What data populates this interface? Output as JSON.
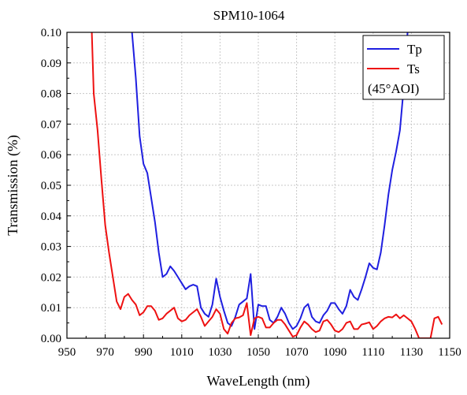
{
  "chart_data": {
    "type": "line",
    "title": "SPM10-1064",
    "xlabel": "WaveLength (nm)",
    "ylabel": "Transmission (%)",
    "xlim": [
      950,
      1150
    ],
    "ylim": [
      0,
      0.1
    ],
    "x_ticks": [
      950,
      970,
      990,
      1010,
      1030,
      1050,
      1070,
      1090,
      1110,
      1130,
      1150
    ],
    "y_ticks": [
      0.0,
      0.01,
      0.02,
      0.03,
      0.04,
      0.05,
      0.06,
      0.07,
      0.08,
      0.09,
      0.1
    ],
    "x_tick_labels": [
      "950",
      "970",
      "990",
      "1010",
      "1030",
      "1050",
      "1070",
      "1090",
      "1110",
      "1130",
      "1150"
    ],
    "y_tick_labels": [
      "0.00",
      "0.01",
      "0.02",
      "0.03",
      "0.04",
      "0.05",
      "0.06",
      "0.07",
      "0.08",
      "0.09",
      "0.10"
    ],
    "grid": true,
    "legend_position": "top-right",
    "legend_note": "(45°AOI)",
    "series": [
      {
        "name": "Tp",
        "color": "#1f1fe0",
        "points": [
          [
            984,
            0.1
          ],
          [
            986,
            0.085
          ],
          [
            988,
            0.066
          ],
          [
            990,
            0.057
          ],
          [
            992,
            0.054
          ],
          [
            994,
            0.046
          ],
          [
            996,
            0.038
          ],
          [
            998,
            0.028
          ],
          [
            1000,
            0.02
          ],
          [
            1002,
            0.021
          ],
          [
            1004,
            0.0235
          ],
          [
            1006,
            0.022
          ],
          [
            1008,
            0.02
          ],
          [
            1010,
            0.018
          ],
          [
            1012,
            0.016
          ],
          [
            1014,
            0.017
          ],
          [
            1016,
            0.0175
          ],
          [
            1018,
            0.017
          ],
          [
            1020,
            0.01
          ],
          [
            1022,
            0.008
          ],
          [
            1024,
            0.007
          ],
          [
            1026,
            0.011
          ],
          [
            1028,
            0.0195
          ],
          [
            1030,
            0.0135
          ],
          [
            1032,
            0.009
          ],
          [
            1034,
            0.005
          ],
          [
            1036,
            0.004
          ],
          [
            1038,
            0.007
          ],
          [
            1040,
            0.011
          ],
          [
            1042,
            0.012
          ],
          [
            1044,
            0.013
          ],
          [
            1046,
            0.021
          ],
          [
            1048,
            0.003
          ],
          [
            1050,
            0.011
          ],
          [
            1052,
            0.0105
          ],
          [
            1054,
            0.0105
          ],
          [
            1056,
            0.006
          ],
          [
            1058,
            0.005
          ],
          [
            1060,
            0.007
          ],
          [
            1062,
            0.01
          ],
          [
            1064,
            0.008
          ],
          [
            1066,
            0.005
          ],
          [
            1068,
            0.003
          ],
          [
            1070,
            0.004
          ],
          [
            1072,
            0.0065
          ],
          [
            1074,
            0.01
          ],
          [
            1076,
            0.0112
          ],
          [
            1078,
            0.007
          ],
          [
            1080,
            0.0055
          ],
          [
            1082,
            0.005
          ],
          [
            1084,
            0.0075
          ],
          [
            1086,
            0.009
          ],
          [
            1088,
            0.0115
          ],
          [
            1090,
            0.0115
          ],
          [
            1092,
            0.0095
          ],
          [
            1094,
            0.008
          ],
          [
            1096,
            0.0105
          ],
          [
            1098,
            0.0158
          ],
          [
            1100,
            0.0135
          ],
          [
            1102,
            0.0125
          ],
          [
            1104,
            0.016
          ],
          [
            1106,
            0.02
          ],
          [
            1108,
            0.0245
          ],
          [
            1110,
            0.023
          ],
          [
            1112,
            0.0225
          ],
          [
            1114,
            0.028
          ],
          [
            1116,
            0.037
          ],
          [
            1118,
            0.047
          ],
          [
            1120,
            0.055
          ],
          [
            1122,
            0.061
          ],
          [
            1124,
            0.068
          ],
          [
            1126,
            0.082
          ],
          [
            1128,
            0.1
          ]
        ]
      },
      {
        "name": "Ts",
        "color": "#ee1111",
        "points": [
          [
            963,
            0.1
          ],
          [
            964,
            0.08
          ],
          [
            966,
            0.068
          ],
          [
            968,
            0.052
          ],
          [
            970,
            0.037
          ],
          [
            972,
            0.028
          ],
          [
            974,
            0.02
          ],
          [
            976,
            0.012
          ],
          [
            978,
            0.0095
          ],
          [
            980,
            0.0135
          ],
          [
            982,
            0.0145
          ],
          [
            984,
            0.0125
          ],
          [
            986,
            0.011
          ],
          [
            988,
            0.0075
          ],
          [
            990,
            0.0085
          ],
          [
            992,
            0.0105
          ],
          [
            994,
            0.0105
          ],
          [
            996,
            0.009
          ],
          [
            998,
            0.006
          ],
          [
            1000,
            0.0065
          ],
          [
            1002,
            0.008
          ],
          [
            1004,
            0.009
          ],
          [
            1006,
            0.01
          ],
          [
            1008,
            0.0065
          ],
          [
            1010,
            0.0055
          ],
          [
            1012,
            0.006
          ],
          [
            1014,
            0.0075
          ],
          [
            1016,
            0.0085
          ],
          [
            1018,
            0.0095
          ],
          [
            1020,
            0.007
          ],
          [
            1022,
            0.004
          ],
          [
            1024,
            0.0055
          ],
          [
            1026,
            0.007
          ],
          [
            1028,
            0.0095
          ],
          [
            1030,
            0.008
          ],
          [
            1032,
            0.003
          ],
          [
            1034,
            0.0015
          ],
          [
            1036,
            0.005
          ],
          [
            1038,
            0.0065
          ],
          [
            1040,
            0.0068
          ],
          [
            1042,
            0.0075
          ],
          [
            1044,
            0.0115
          ],
          [
            1046,
            0.001
          ],
          [
            1048,
            0.0065
          ],
          [
            1050,
            0.007
          ],
          [
            1052,
            0.0065
          ],
          [
            1054,
            0.0035
          ],
          [
            1056,
            0.0035
          ],
          [
            1058,
            0.005
          ],
          [
            1060,
            0.006
          ],
          [
            1062,
            0.006
          ],
          [
            1064,
            0.0045
          ],
          [
            1066,
            0.0025
          ],
          [
            1068,
            0.0005
          ],
          [
            1070,
            0.001
          ],
          [
            1072,
            0.0035
          ],
          [
            1074,
            0.0055
          ],
          [
            1076,
            0.0045
          ],
          [
            1078,
            0.003
          ],
          [
            1080,
            0.002
          ],
          [
            1082,
            0.0025
          ],
          [
            1084,
            0.0055
          ],
          [
            1086,
            0.006
          ],
          [
            1088,
            0.0045
          ],
          [
            1090,
            0.0025
          ],
          [
            1092,
            0.002
          ],
          [
            1094,
            0.003
          ],
          [
            1096,
            0.005
          ],
          [
            1098,
            0.0055
          ],
          [
            1100,
            0.003
          ],
          [
            1102,
            0.003
          ],
          [
            1104,
            0.0045
          ],
          [
            1106,
            0.0048
          ],
          [
            1108,
            0.0052
          ],
          [
            1110,
            0.003
          ],
          [
            1112,
            0.004
          ],
          [
            1114,
            0.0055
          ],
          [
            1116,
            0.0065
          ],
          [
            1118,
            0.007
          ],
          [
            1120,
            0.0068
          ],
          [
            1122,
            0.0078
          ],
          [
            1124,
            0.0065
          ],
          [
            1126,
            0.0075
          ],
          [
            1128,
            0.0065
          ],
          [
            1130,
            0.0055
          ],
          [
            1132,
            0.003
          ],
          [
            1134,
            0.0
          ],
          [
            1140,
            0.0
          ],
          [
            1142,
            0.0065
          ],
          [
            1144,
            0.007
          ],
          [
            1146,
            0.0045
          ]
        ]
      }
    ]
  }
}
